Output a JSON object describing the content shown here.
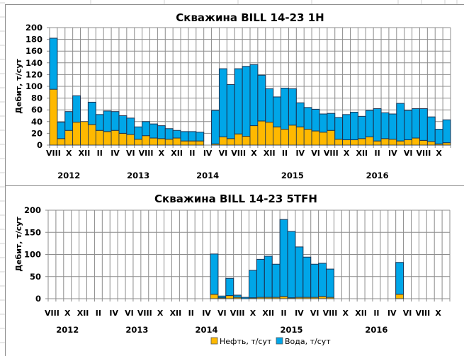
{
  "colors": {
    "oil": "#ffb900",
    "water": "#00a6e8",
    "bar_edge": "#1a3050",
    "grid": "#8c8c8c",
    "sheet_grid": "#d0d0d0"
  },
  "legend": {
    "oil_label": "Нефть, т/сут",
    "water_label": "Вода, т/сут",
    "placement": "bottom-center"
  },
  "chart_data": [
    {
      "type": "bar",
      "stacked": true,
      "title": "Скважина BILL 14-23 1H",
      "xlabel": "",
      "ylabel": "Дебит, т/сут",
      "ylim": [
        0,
        200
      ],
      "yticks": [
        0,
        20,
        40,
        60,
        80,
        100,
        120,
        140,
        160,
        180,
        200
      ],
      "grid": true,
      "period_start": "2012-08",
      "months_count": 52,
      "month_labels": [
        "VIII",
        "X",
        "XII",
        "II",
        "IV",
        "VI",
        "VIII",
        "X",
        "XII",
        "II",
        "IV",
        "VI",
        "VIII",
        "X",
        "XII",
        "II",
        "IV",
        "VI",
        "VIII",
        "X",
        "XII",
        "II",
        "IV",
        "VI",
        "VIII",
        "X"
      ],
      "year_labels": [
        {
          "label": "2012",
          "month_index": 2
        },
        {
          "label": "2013",
          "month_index": 11
        },
        {
          "label": "2014",
          "month_index": 20
        },
        {
          "label": "2015",
          "month_index": 31
        },
        {
          "label": "2016",
          "month_index": 42
        }
      ],
      "series": [
        {
          "name": "Нефть, т/сут",
          "values": [
            95,
            11,
            25,
            39,
            40,
            35,
            25,
            23,
            25,
            20,
            18,
            10,
            16,
            12,
            11,
            10,
            12,
            7,
            7,
            7,
            null,
            2,
            14,
            11,
            19,
            15,
            33,
            41,
            39,
            31,
            27,
            34,
            31,
            27,
            24,
            22,
            25,
            10,
            9,
            9,
            11,
            14,
            7,
            11,
            10,
            7,
            9,
            12,
            8,
            6,
            2,
            4
          ]
        },
        {
          "name": "Вода, т/сут",
          "values": [
            87,
            28,
            32,
            45,
            0,
            38,
            27,
            35,
            32,
            30,
            28,
            21,
            24,
            24,
            22,
            18,
            13,
            16,
            16,
            15,
            null,
            57,
            116,
            92,
            111,
            119,
            104,
            78,
            57,
            51,
            70,
            62,
            41,
            37,
            37,
            31,
            29,
            37,
            43,
            47,
            38,
            45,
            55,
            44,
            43,
            64,
            50,
            50,
            54,
            42,
            25,
            39
          ]
        }
      ]
    },
    {
      "type": "bar",
      "stacked": true,
      "title": "Скважина BILL 14-23 5TFH",
      "xlabel": "",
      "ylabel": "Дебит, т/сут",
      "ylim": [
        0,
        200
      ],
      "yticks": [
        0,
        50,
        100,
        150,
        200
      ],
      "grid": true,
      "period_start": "2012-08",
      "months_count": 52,
      "month_labels": [
        "VIII",
        "X",
        "XII",
        "II",
        "IV",
        "VI",
        "VIII",
        "X",
        "XII",
        "II",
        "IV",
        "VI",
        "VIII",
        "X",
        "XII",
        "II",
        "IV",
        "VI",
        "VIII",
        "X",
        "XII",
        "II",
        "IV",
        "VI",
        "VIII",
        "X"
      ],
      "year_labels": [
        {
          "label": "2012",
          "month_index": 2
        },
        {
          "label": "2013",
          "month_index": 11
        },
        {
          "label": "2014",
          "month_index": 20
        },
        {
          "label": "2015",
          "month_index": 31
        },
        {
          "label": "2016",
          "month_index": 42
        }
      ],
      "series": [
        {
          "name": "Нефть, т/сут",
          "values": [
            null,
            null,
            null,
            null,
            null,
            null,
            null,
            null,
            null,
            null,
            null,
            null,
            null,
            null,
            null,
            null,
            null,
            null,
            null,
            null,
            null,
            10,
            2,
            7,
            3,
            0,
            2,
            3,
            3,
            3,
            5,
            2,
            3,
            3,
            3,
            5,
            3,
            null,
            null,
            null,
            null,
            null,
            null,
            null,
            null,
            10,
            null,
            null,
            null,
            null,
            null,
            null
          ]
        },
        {
          "name": "Вода, т/сут",
          "values": [
            null,
            null,
            null,
            null,
            null,
            null,
            null,
            null,
            null,
            null,
            null,
            null,
            null,
            null,
            null,
            null,
            null,
            null,
            null,
            null,
            null,
            91,
            4,
            39,
            5,
            3,
            62,
            86,
            93,
            75,
            174,
            150,
            114,
            91,
            75,
            75,
            64,
            null,
            null,
            null,
            null,
            null,
            null,
            null,
            null,
            72,
            null,
            null,
            null,
            null,
            null,
            null
          ]
        }
      ]
    }
  ]
}
